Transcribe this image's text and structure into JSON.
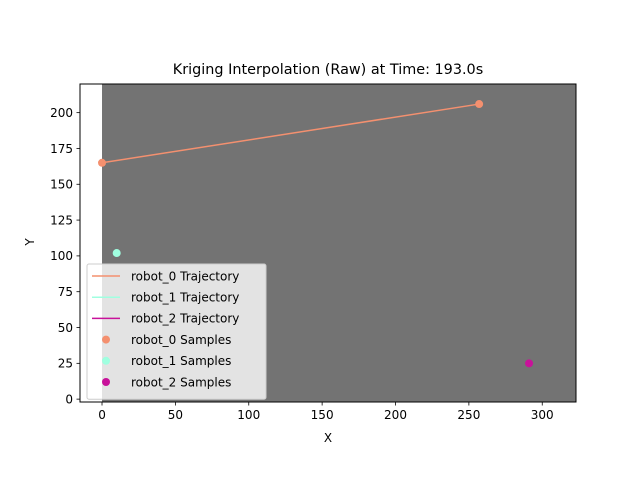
{
  "chart_data": {
    "type": "scatter",
    "title": "Kriging Interpolation (Raw) at Time: 193.0s",
    "xlabel": "X",
    "ylabel": "Y",
    "xlim": [
      -15,
      323
    ],
    "ylim": [
      -2,
      220
    ],
    "x_ticks": [
      0,
      50,
      100,
      150,
      200,
      250,
      300
    ],
    "y_ticks": [
      0,
      25,
      50,
      75,
      100,
      125,
      150,
      175,
      200
    ],
    "x_tick_labels": [
      "0",
      "50",
      "100",
      "150",
      "200",
      "250",
      "300"
    ],
    "y_tick_labels": [
      "0",
      "25",
      "50",
      "75",
      "100",
      "125",
      "150",
      "175",
      "200"
    ],
    "grid": false,
    "background_field": {
      "color": "#737373",
      "x": [
        0,
        323
      ],
      "y": [
        -2,
        220
      ]
    },
    "legend_position": "lower-left",
    "series": [
      {
        "name": "robot_0 Trajectory",
        "kind": "line",
        "color": "#f4906f",
        "x": [
          0,
          257
        ],
        "y": [
          165,
          206
        ]
      },
      {
        "name": "robot_1 Trajectory",
        "kind": "line",
        "color": "#a0ffe0",
        "x": [],
        "y": []
      },
      {
        "name": "robot_2 Trajectory",
        "kind": "line",
        "color": "#c8129a",
        "x": [],
        "y": []
      },
      {
        "name": "robot_0 Samples",
        "kind": "scatter",
        "color": "#f4906f",
        "x": [
          0,
          257
        ],
        "y": [
          165,
          206
        ]
      },
      {
        "name": "robot_1 Samples",
        "kind": "scatter",
        "color": "#a0ffe0",
        "x": [
          10
        ],
        "y": [
          102
        ]
      },
      {
        "name": "robot_2 Samples",
        "kind": "scatter",
        "color": "#c8129a",
        "x": [
          291
        ],
        "y": [
          25
        ]
      }
    ]
  }
}
